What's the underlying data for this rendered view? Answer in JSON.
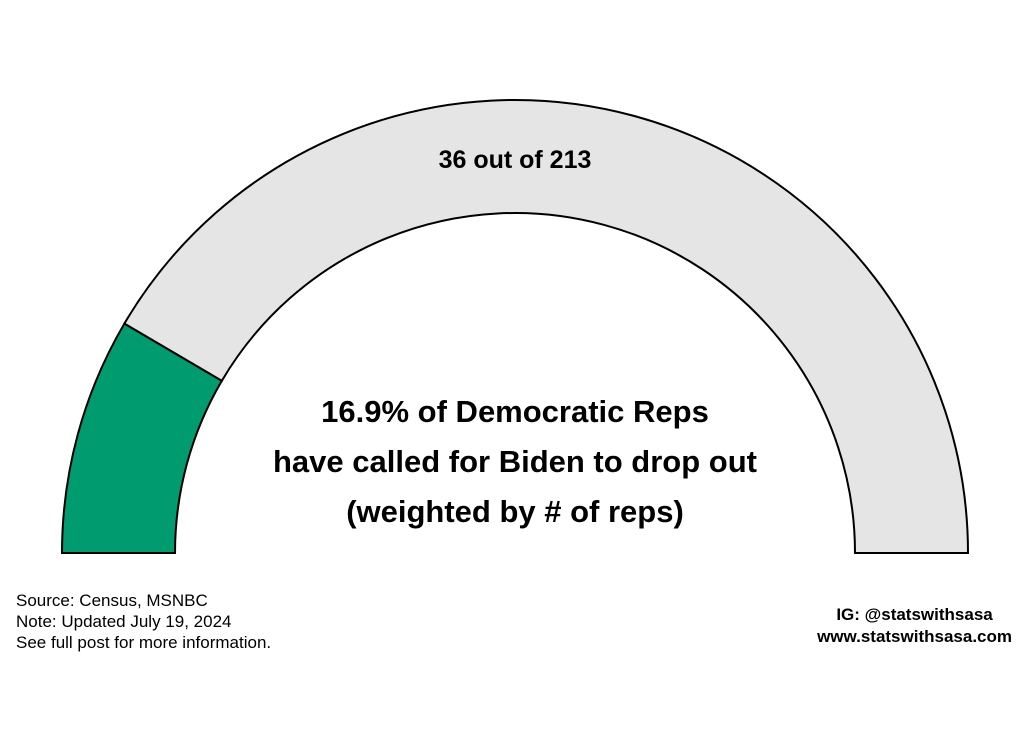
{
  "chart_data": {
    "type": "gauge",
    "value": 36,
    "total": 213,
    "count_label": "36 out of 213",
    "center_text": [
      "16.9% of Democratic Reps",
      "have called for Biden to drop out",
      "(weighted by # of reps)"
    ],
    "filled_color": "#009B6E",
    "empty_color": "#E5E5E5",
    "outline_color": "#000000"
  },
  "footer": {
    "source": "Source: Census, MSNBC",
    "note": "Note: Updated July 19, 2024",
    "more_info": "See full post for more information.",
    "instagram": "IG: @statswithsasa",
    "website": "www.statswithsasa.com"
  }
}
